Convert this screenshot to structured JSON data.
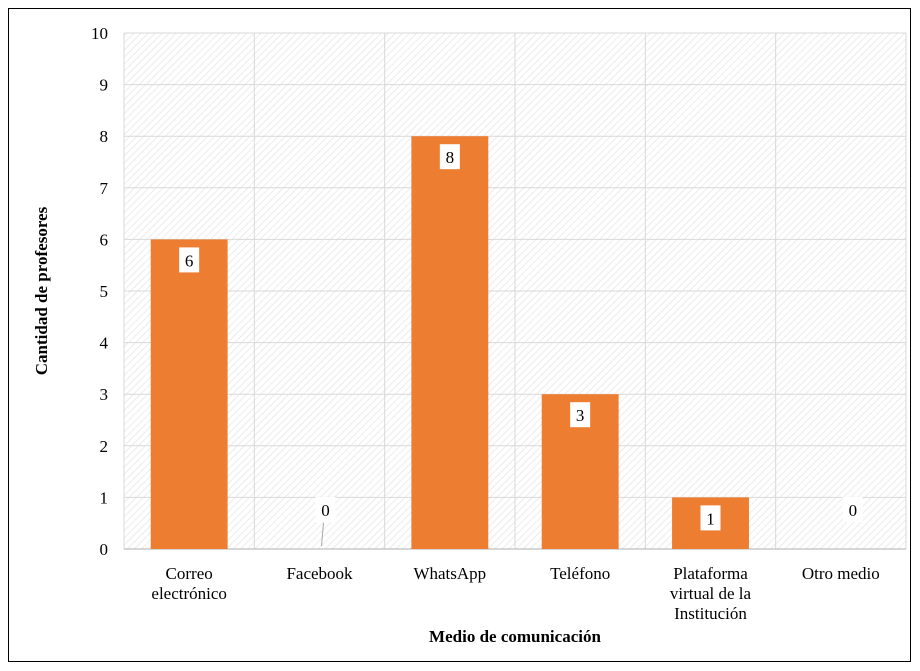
{
  "chart_data": {
    "type": "bar",
    "categories": [
      [
        "Correo",
        "electrónico"
      ],
      [
        "Facebook"
      ],
      [
        "WhatsApp"
      ],
      [
        "Teléfono"
      ],
      [
        "Plataforma",
        "virtual de la",
        "Institución"
      ],
      [
        "Otro medio"
      ]
    ],
    "values": [
      6,
      0,
      8,
      3,
      1,
      0
    ],
    "data_labels": [
      "6",
      "0",
      "8",
      "3",
      "1",
      "0"
    ],
    "xlabel": "Medio de comunicación",
    "ylabel": "Cantidad de profesores",
    "ylim": [
      0,
      10
    ],
    "yticks": [
      "0",
      "1",
      "2",
      "3",
      "4",
      "5",
      "6",
      "7",
      "8",
      "9",
      "10"
    ],
    "grid": true,
    "legend": "none",
    "colors": {
      "bar": "#ED7D31",
      "grid": "#D9D9D9",
      "hatch": "#E6E6E6",
      "axis": "#BFBFBF"
    }
  }
}
